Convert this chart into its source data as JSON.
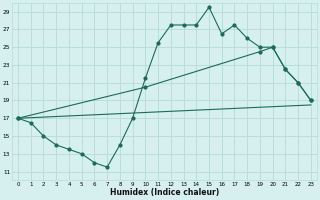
{
  "xlabel": "Humidex (Indice chaleur)",
  "ylabel": "",
  "bg_color": "#d6f0f0",
  "grid_color": "#b8dada",
  "line_color": "#1a6b5a",
  "xlim": [
    -0.5,
    23.5
  ],
  "ylim": [
    10,
    30
  ],
  "yticks": [
    11,
    13,
    15,
    17,
    19,
    21,
    23,
    25,
    27,
    29
  ],
  "xticks": [
    0,
    1,
    2,
    3,
    4,
    5,
    6,
    7,
    8,
    9,
    10,
    11,
    12,
    13,
    14,
    15,
    16,
    17,
    18,
    19,
    20,
    21,
    22,
    23
  ],
  "line1_x": [
    0,
    1,
    2,
    3,
    4,
    5,
    6,
    7,
    8,
    9,
    10,
    11,
    12,
    13,
    14,
    15,
    16,
    17,
    18,
    19,
    20,
    21,
    22,
    23
  ],
  "line1_y": [
    17,
    16.5,
    15,
    14,
    13.5,
    13,
    12,
    11.5,
    14,
    17,
    21.5,
    25.5,
    27.5,
    27.5,
    27.5,
    29.5,
    26.5,
    27.5,
    26,
    25,
    25,
    22.5,
    21,
    19
  ],
  "line2_x": [
    0,
    10,
    19,
    20,
    21,
    22,
    23
  ],
  "line2_y": [
    17,
    20.5,
    24.5,
    25,
    22.5,
    21,
    19
  ],
  "line3_x": [
    0,
    23
  ],
  "line3_y": [
    17,
    18.5
  ]
}
